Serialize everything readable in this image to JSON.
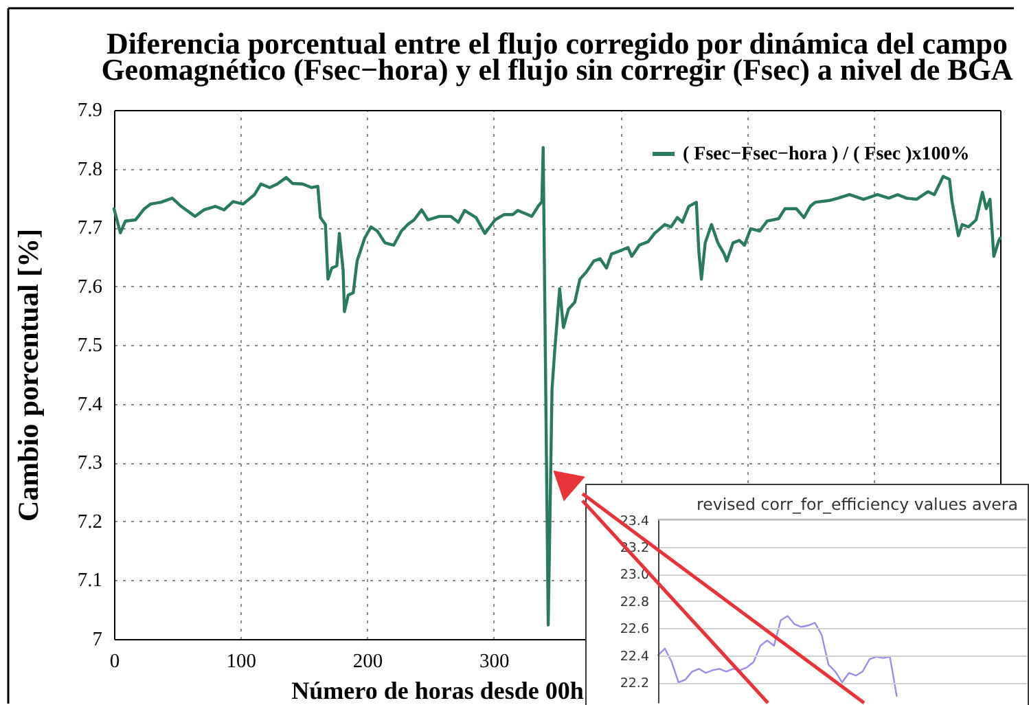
{
  "chart_data": [
    {
      "type": "line",
      "title": "Diferencia porcentual entre el flujo corregido por dinámica del campo\nGeomagnético (Fsec−hora) y el flujo sin corregir (Fsec) a nivel de BGA",
      "xlabel": "Número de horas desde 00h",
      "ylabel": "Cambio porcentual [%]",
      "x": [
        0,
        5,
        9,
        17,
        24,
        29,
        37,
        46,
        53,
        64,
        71,
        80,
        87,
        94,
        102,
        111,
        116,
        123,
        129,
        136,
        141,
        149,
        156,
        161,
        163,
        167,
        169,
        172,
        176,
        178,
        181,
        182,
        185,
        189,
        192,
        198,
        203,
        208,
        214,
        221,
        227,
        232,
        237,
        243,
        248,
        257,
        266,
        272,
        277,
        286,
        293,
        301,
        308,
        315,
        319,
        330,
        335,
        338,
        339,
        343,
        346,
        348,
        352,
        355,
        359,
        364,
        368,
        373,
        379,
        384,
        389,
        393,
        398,
        406,
        409,
        415,
        422,
        427,
        435,
        440,
        445,
        449,
        454,
        460,
        462,
        464,
        467,
        472,
        477,
        482,
        484,
        489,
        494,
        498,
        503,
        510,
        516,
        525,
        530,
        539,
        545,
        550,
        554,
        565,
        572,
        581,
        592,
        603,
        612,
        619,
        626,
        634,
        643,
        648,
        655,
        660,
        662,
        667,
        670,
        675,
        681,
        686,
        689,
        692,
        695,
        699,
        700
      ],
      "series": [
        {
          "name": "( Fsec−Fsec−hora ) / ( Fsec )x100%",
          "color": "#2a7b5b",
          "values": [
            7.732,
            7.691,
            7.711,
            7.713,
            7.732,
            7.74,
            7.743,
            7.75,
            7.736,
            7.719,
            7.73,
            7.736,
            7.73,
            7.744,
            7.74,
            7.756,
            7.774,
            7.768,
            7.774,
            7.785,
            7.775,
            7.774,
            7.768,
            7.77,
            7.717,
            7.705,
            7.612,
            7.631,
            7.635,
            7.69,
            7.627,
            7.557,
            7.585,
            7.589,
            7.643,
            7.682,
            7.701,
            7.694,
            7.674,
            7.67,
            7.694,
            7.705,
            7.713,
            7.73,
            7.713,
            7.719,
            7.719,
            7.709,
            7.729,
            7.717,
            7.69,
            7.713,
            7.722,
            7.722,
            7.729,
            7.719,
            7.736,
            7.744,
            7.836,
            7.024,
            7.425,
            7.487,
            7.596,
            7.53,
            7.561,
            7.573,
            7.612,
            7.624,
            7.643,
            7.647,
            7.631,
            7.655,
            7.659,
            7.666,
            7.651,
            7.67,
            7.676,
            7.69,
            7.705,
            7.701,
            7.717,
            7.709,
            7.736,
            7.743,
            7.659,
            7.612,
            7.674,
            7.705,
            7.674,
            7.655,
            7.643,
            7.674,
            7.678,
            7.67,
            7.698,
            7.694,
            7.711,
            7.715,
            7.732,
            7.732,
            7.717,
            7.736,
            7.743,
            7.746,
            7.75,
            7.756,
            7.748,
            7.756,
            7.75,
            7.756,
            7.75,
            7.748,
            7.761,
            7.756,
            7.787,
            7.782,
            7.744,
            7.686,
            7.705,
            7.701,
            7.713,
            7.76,
            7.732,
            7.748,
            7.651,
            7.678,
            7.682
          ]
        }
      ],
      "xlim": [
        0,
        700
      ],
      "xticks": [
        0,
        100,
        200,
        300,
        {
          "value": 400,
          "label": null
        },
        {
          "value": 500,
          "label": null
        },
        {
          "value": 600,
          "label": null
        },
        {
          "value": 700,
          "label": null
        }
      ],
      "ylim": [
        7,
        7.9
      ],
      "yticks": [
        7,
        7.1,
        7.2,
        7.3,
        7.4,
        7.5,
        7.6,
        7.7,
        7.8,
        7.9
      ],
      "grid": true,
      "legend": "top right"
    },
    {
      "type": "line",
      "title": "revised corr_for_efficiency values avera",
      "categories": [
        null,
        null,
        null,
        null,
        null,
        null,
        null,
        null,
        null,
        null,
        null,
        null,
        null,
        null,
        null,
        null,
        null,
        null,
        null,
        null,
        null,
        null,
        null,
        null,
        null,
        null,
        null,
        null,
        null,
        null,
        null,
        null,
        null,
        null,
        null,
        null,
        null,
        null,
        null,
        null,
        null,
        null,
        null,
        null,
        null,
        null,
        null,
        null,
        null,
        null,
        null,
        null,
        null,
        null,
        null
      ],
      "series": [
        {
          "color": "#9b8df0",
          "values": [
            22.4,
            22.45,
            22.35,
            22.2,
            22.22,
            22.28,
            22.3,
            22.27,
            22.29,
            22.3,
            22.28,
            22.3,
            22.29,
            22.31,
            22.35,
            22.47,
            22.51,
            22.47,
            22.66,
            22.69,
            22.63,
            22.61,
            22.62,
            22.64,
            22.55,
            22.33,
            22.28,
            22.2,
            22.27,
            22.25,
            22.28,
            22.37,
            22.39,
            22.38,
            22.39,
            22.1,
            null,
            null,
            null,
            null,
            null,
            null,
            null,
            null,
            null,
            null,
            null,
            null,
            null,
            null,
            null,
            null,
            null,
            null,
            null
          ]
        }
      ],
      "ylim": [
        22.05,
        23.4
      ],
      "yticks": [
        22.2,
        22.4,
        22.6,
        22.8,
        {
          "value": 23,
          "label": "23.0"
        },
        23.2,
        23.4
      ],
      "tick_labels": "y",
      "grid": "y"
    }
  ]
}
